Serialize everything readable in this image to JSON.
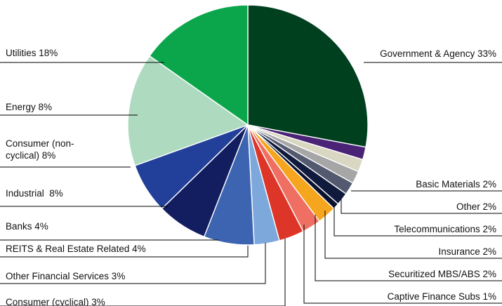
{
  "chart_data": {
    "type": "pie",
    "title": "",
    "start": "top",
    "direction": "clockwise",
    "slices": [
      {
        "label": "Government & Agency 33%",
        "value": 33,
        "color": "#00401f"
      },
      {
        "label": "Basic Materials 2%",
        "value": 2,
        "color": "#4a2376"
      },
      {
        "label": "Other 2%",
        "value": 2,
        "color": "#d9d7c2"
      },
      {
        "label": "Telecommunications 2%",
        "value": 2,
        "color": "#a6a6a6"
      },
      {
        "label": "Insurance 2%",
        "value": 2,
        "color": "#535a70"
      },
      {
        "label": "Securitized MBS/ABS 2%",
        "value": 2,
        "color": "#101a3c"
      },
      {
        "label": "Captive Finance Subs 1%",
        "value": 1,
        "color": "#0b1230"
      },
      {
        "label": "Consumer (cyclical) 3%",
        "value": 3,
        "color": "#f6a51e"
      },
      {
        "label": "Other Financial Services 3%",
        "value": 3,
        "color": "#ef7062"
      },
      {
        "label": "REITS & Real Estate Related 4%",
        "value": 4,
        "color": "#dd3527"
      },
      {
        "label": "Banks 4%",
        "value": 4,
        "color": "#7da8dc"
      },
      {
        "label": "Industrial  8%",
        "value": 8,
        "color": "#3d64b1"
      },
      {
        "label": "Consumer (non-\ncyclical) 8%",
        "value": 8,
        "color": "#121e5f"
      },
      {
        "label": "Energy 8%",
        "value": 8,
        "color": "#22409a"
      },
      {
        "label": "Utilities 18%",
        "value": 18,
        "color": "#aedbbf"
      },
      {
        "label": "",
        "value": 18,
        "color": "#0ba64c"
      }
    ]
  }
}
